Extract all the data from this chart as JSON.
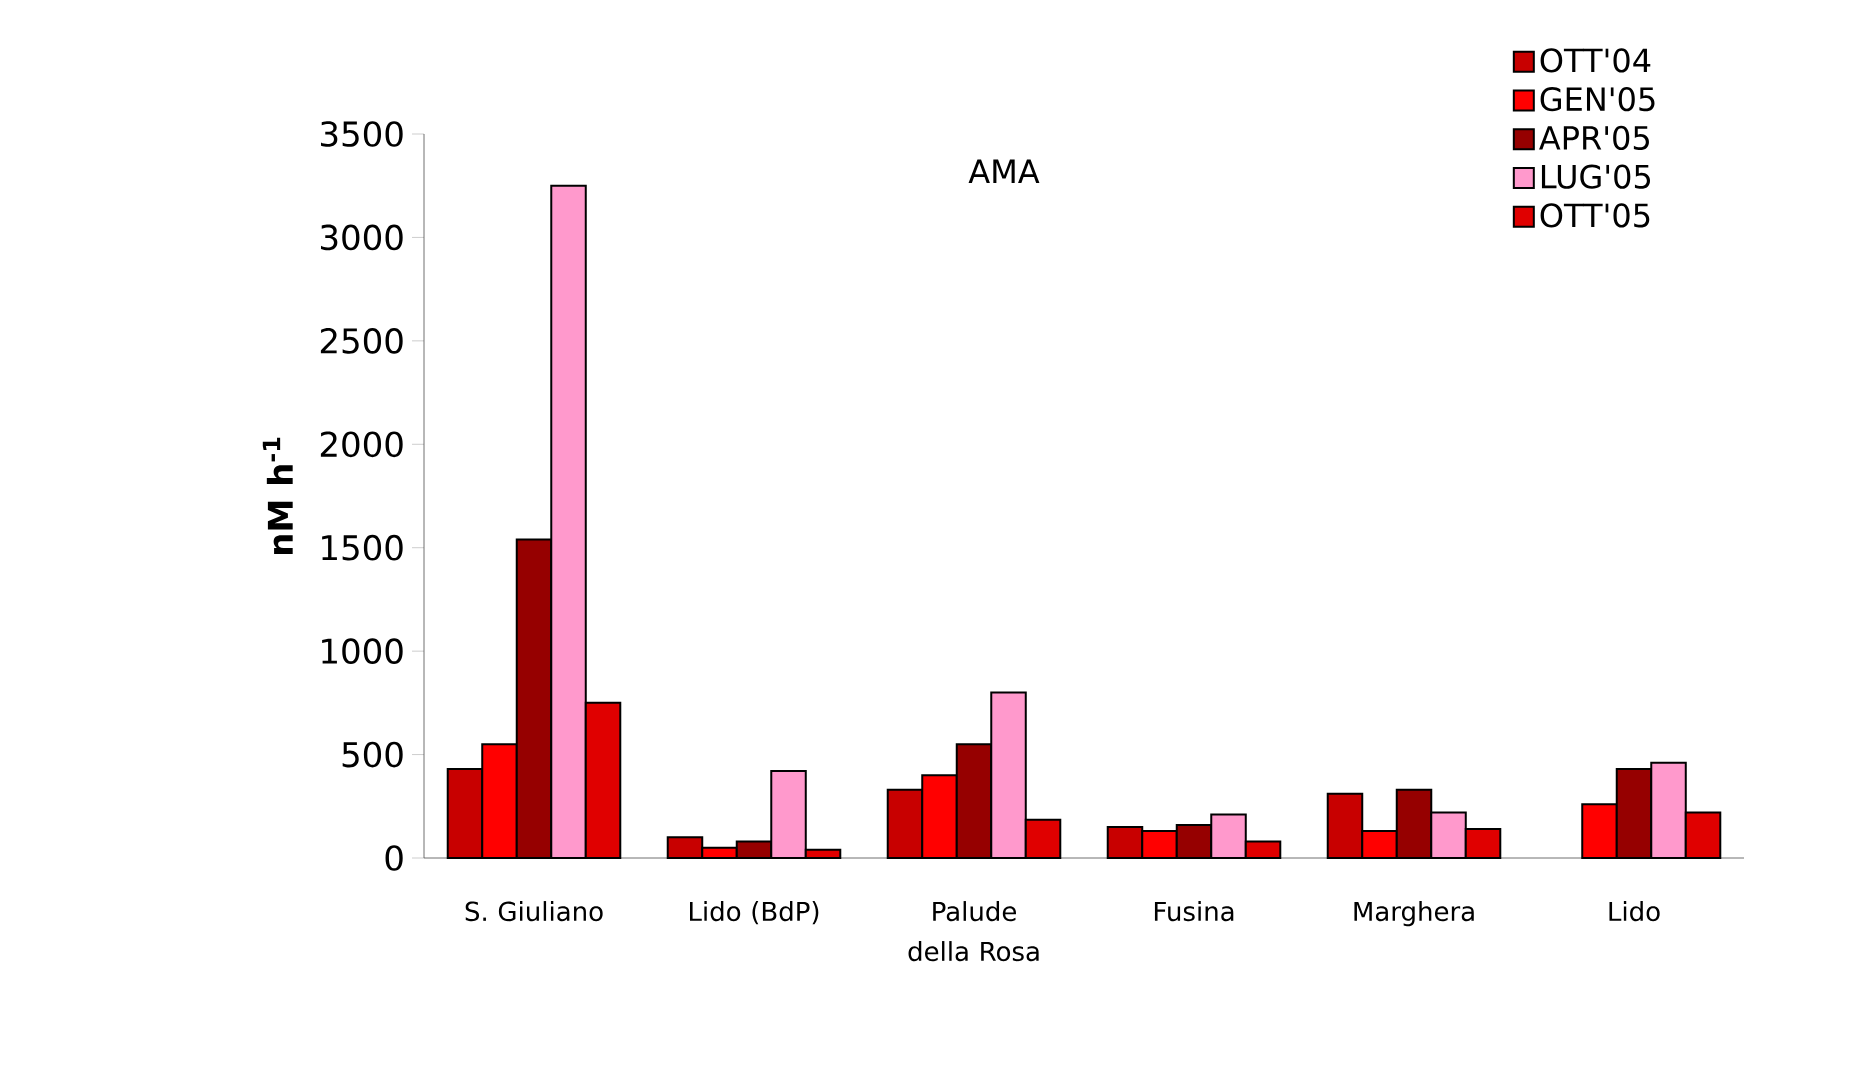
{
  "chart_data": {
    "type": "bar",
    "title": "AMA",
    "ylabel": "nM h$^{-1}$",
    "categories": [
      "S. Giuliano",
      "Lido (BdP)",
      "Palude della Rosa",
      "Fusina",
      "Marghera",
      "Lido"
    ],
    "series": [
      {
        "name": "OTT'04",
        "color": "#c80000",
        "values": [
          430,
          100,
          330,
          150,
          310,
          null
        ]
      },
      {
        "name": "GEN'05",
        "color": "#ff0000",
        "values": [
          550,
          50,
          400,
          130,
          130,
          260
        ]
      },
      {
        "name": "APR'05",
        "color": "#960000",
        "values": [
          1540,
          80,
          550,
          160,
          330,
          430
        ]
      },
      {
        "name": "LUG'05",
        "color": "#ff99cc",
        "values": [
          3250,
          420,
          800,
          210,
          220,
          460
        ]
      },
      {
        "name": "OTT'05",
        "color": "#e00000",
        "values": [
          750,
          40,
          185,
          80,
          140,
          220
        ]
      }
    ],
    "ylim": [
      0,
      3500
    ],
    "yticks": [
      0,
      500,
      1000,
      1500,
      2000,
      2500,
      3000,
      3500
    ],
    "grid": false,
    "legend": "top right"
  }
}
